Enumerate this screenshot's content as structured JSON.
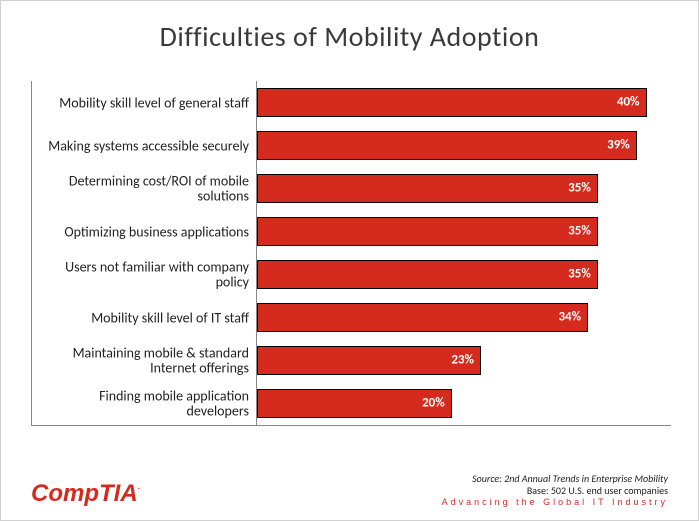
{
  "title": {
    "text": "Difficulties of Mobility Adoption",
    "fontsize": 28,
    "color": "#3a3a3a"
  },
  "chart": {
    "type": "bar-horizontal",
    "xmax": 42,
    "bar_color": "#d52b1e",
    "bar_border_color": "#000000",
    "value_color": "#ffffff",
    "value_fontsize": 13,
    "label_fontsize": 14,
    "label_color": "#222222",
    "items": [
      {
        "label": "Mobility skill level of general staff",
        "value": 40,
        "display": "40%"
      },
      {
        "label": "Making systems accessible securely",
        "value": 39,
        "display": "39%"
      },
      {
        "label": "Determining cost/ROI of mobile solutions",
        "value": 35,
        "display": "35%"
      },
      {
        "label": "Optimizing business applications",
        "value": 35,
        "display": "35%"
      },
      {
        "label": "Users not familiar with company policy",
        "value": 35,
        "display": "35%"
      },
      {
        "label": "Mobility skill level of IT staff",
        "value": 34,
        "display": "34%"
      },
      {
        "label": "Maintaining mobile & standard Internet offerings",
        "value": 23,
        "display": "23%"
      },
      {
        "label": "Finding mobile application developers",
        "value": 20,
        "display": "20%"
      }
    ]
  },
  "footer": {
    "logo_text": "CompTIA",
    "logo_color": "#d52b1e",
    "logo_fontsize": 24,
    "source_line1": "Source: 2nd Annual Trends in Enterprise Mobility",
    "source_line2": "Base: 502 U.S. end user companies",
    "source_fontsize": 10,
    "tagline": "Advancing the Global IT Industry",
    "tagline_color": "#d52b1e",
    "tagline_fontsize": 9
  }
}
